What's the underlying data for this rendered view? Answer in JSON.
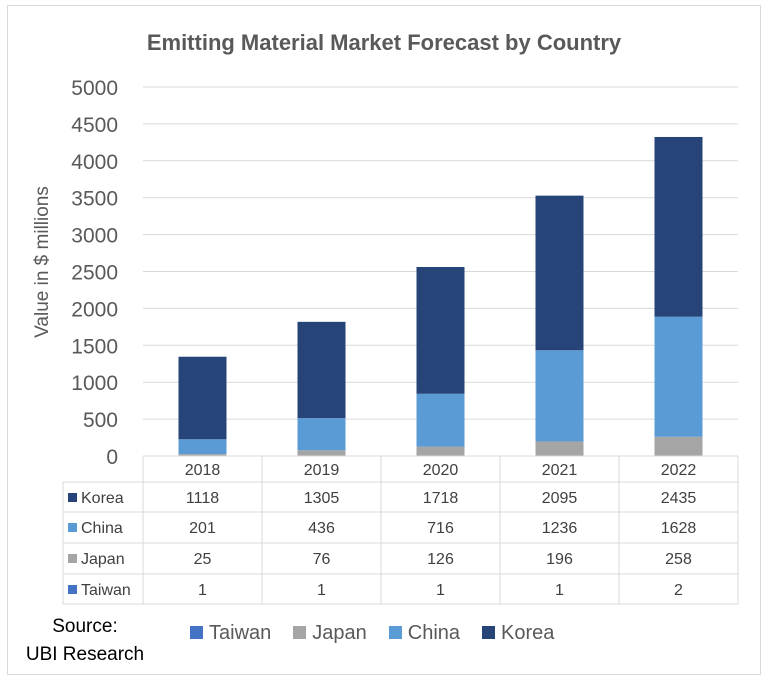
{
  "chart_data": {
    "type": "bar",
    "stacked": true,
    "title": "Emitting Material Market Forecast by Country",
    "ylabel": "Value in $ millions",
    "xlabel": "",
    "ylim": [
      0,
      5000
    ],
    "yticks": [
      0,
      500,
      1000,
      1500,
      2000,
      2500,
      3000,
      3500,
      4000,
      4500,
      5000
    ],
    "categories": [
      "2018",
      "2019",
      "2020",
      "2021",
      "2022"
    ],
    "series": [
      {
        "name": "Taiwan",
        "color": "#4472c4",
        "values": [
          1,
          1,
          1,
          1,
          2
        ]
      },
      {
        "name": "Japan",
        "color": "#a5a5a5",
        "values": [
          25,
          76,
          126,
          196,
          258
        ]
      },
      {
        "name": "China",
        "color": "#5b9bd5",
        "values": [
          201,
          436,
          716,
          1236,
          1628
        ]
      },
      {
        "name": "Korea",
        "color": "#264478",
        "values": [
          1118,
          1305,
          1718,
          2095,
          2435
        ]
      }
    ],
    "table_row_order": [
      "Korea",
      "China",
      "Japan",
      "Taiwan"
    ],
    "legend": "bottom",
    "grid": true
  },
  "source": {
    "line1": "Source:",
    "line2": "UBI Research"
  }
}
